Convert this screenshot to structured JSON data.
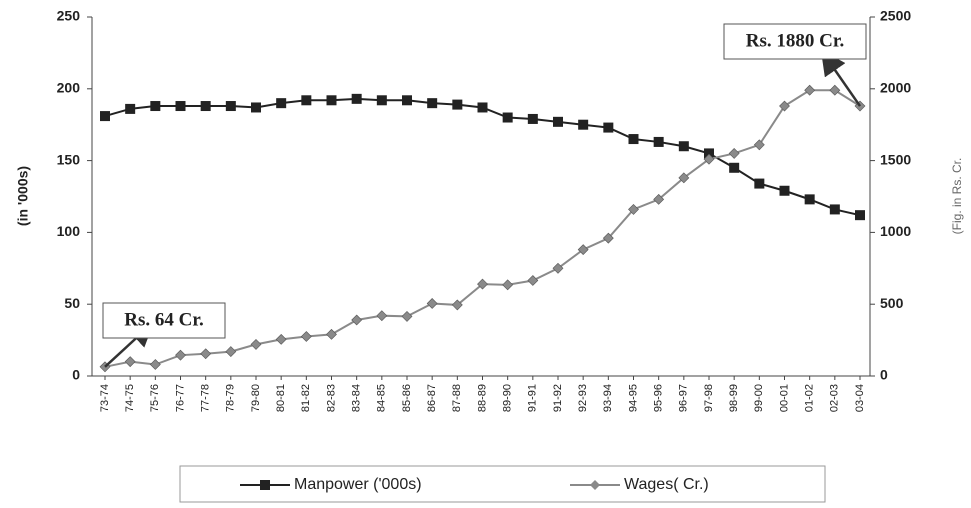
{
  "chart_data": {
    "type": "line",
    "categories": [
      "73-74",
      "74-75",
      "75-76",
      "76-77",
      "77-78",
      "78-79",
      "79-80",
      "80-81",
      "81-82",
      "82-83",
      "83-84",
      "84-85",
      "85-86",
      "86-87",
      "87-88",
      "88-89",
      "89-90",
      "91-91",
      "91-92",
      "92-93",
      "93-94",
      "94-95",
      "95-96",
      "96-97",
      "97-98",
      "98-99",
      "99-00",
      "00-01",
      "01-02",
      "02-03",
      "03-04"
    ],
    "series": [
      {
        "name": "Manpower ('000s)",
        "color": "#222222",
        "marker": "square",
        "values": [
          181,
          186,
          188,
          188,
          188,
          188,
          187,
          190,
          192,
          192,
          193,
          192,
          192,
          190,
          189,
          187,
          180,
          179,
          177,
          175,
          173,
          165,
          163,
          160,
          155,
          145,
          134,
          129,
          123,
          116,
          112
        ]
      },
      {
        "name": "Wages( Cr.)",
        "color": "#8a8a8a",
        "marker": "diamond",
        "axis": "y2",
        "values": [
          64,
          100,
          80,
          145,
          155,
          170,
          220,
          255,
          275,
          290,
          390,
          420,
          415,
          505,
          495,
          640,
          635,
          665,
          750,
          880,
          960,
          1160,
          1230,
          1380,
          1510,
          1550,
          1610,
          1880,
          1990,
          1990,
          1880
        ]
      }
    ],
    "ylabel": "(in '000s)",
    "y2label": "(Fig. in Rs. Cr.",
    "ylim": [
      0,
      250
    ],
    "yticks": [
      0,
      50,
      100,
      150,
      200,
      250
    ],
    "y2lim": [
      0,
      2500
    ],
    "y2ticks": [
      0,
      500,
      1000,
      1500,
      2000,
      2500
    ],
    "annotations": [
      "Rs. 64 Cr.",
      "Rs. 1880 Cr."
    ],
    "legend": "bottom"
  }
}
